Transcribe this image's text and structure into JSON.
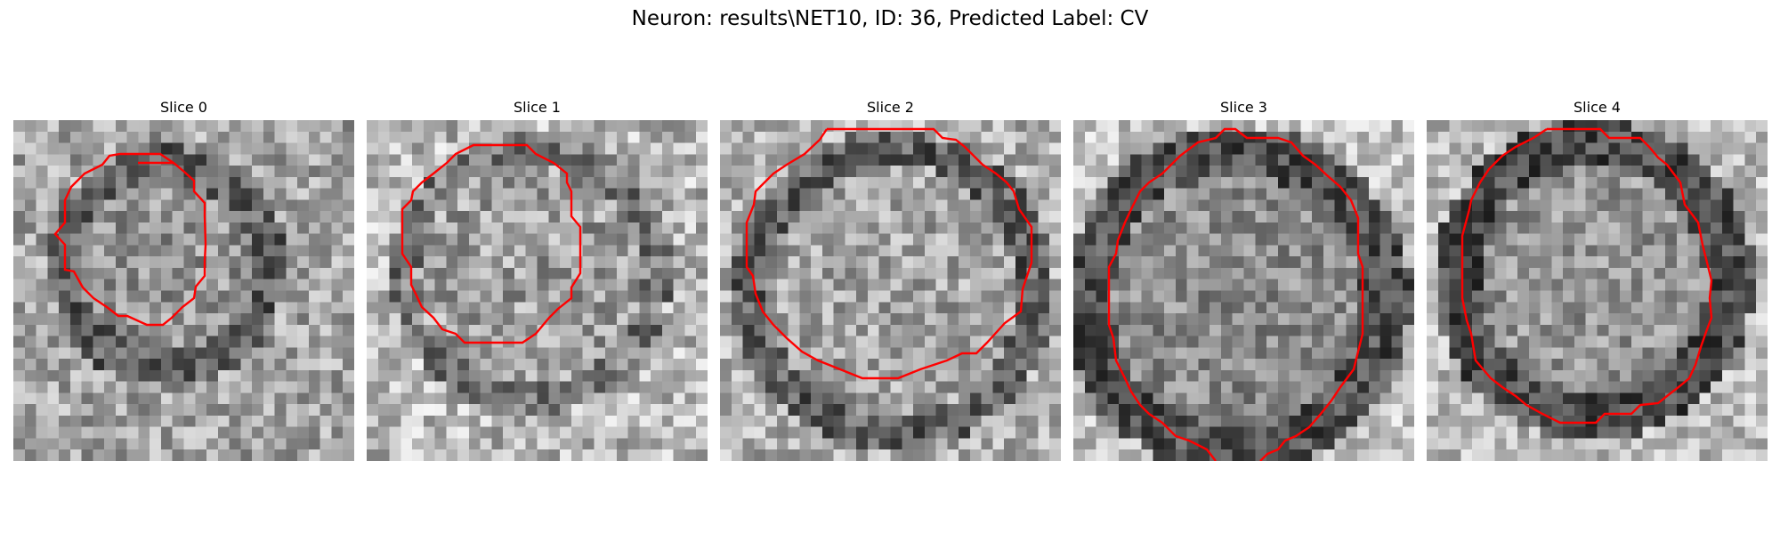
{
  "figure": {
    "title": "Neuron: results\\NET10, ID: 36, Predicted Label: CV"
  },
  "colors": {
    "contour": "#ff0000",
    "background": "#ffffff"
  },
  "panels": [
    {
      "title": "Slice 0"
    },
    {
      "title": "Slice 1"
    },
    {
      "title": "Slice 2"
    },
    {
      "title": "Slice 3"
    },
    {
      "title": "Slice 4"
    }
  ]
}
